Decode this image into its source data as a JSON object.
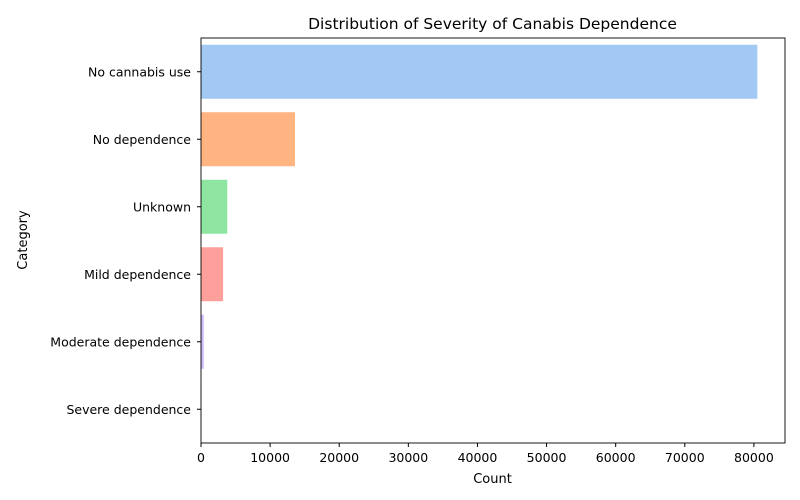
{
  "chart_data": {
    "type": "bar",
    "orientation": "horizontal",
    "title": "Distribution of Severity of Canabis Dependence",
    "xlabel": "Count",
    "ylabel": "Category",
    "categories": [
      "No cannabis use",
      "No dependence",
      "Unknown",
      "Mild dependence",
      "Moderate dependence",
      "Severe dependence"
    ],
    "values": [
      80500,
      13600,
      3800,
      3200,
      400,
      50
    ],
    "colors": [
      "#a1c9f4",
      "#ffb482",
      "#8de5a1",
      "#ff9f9b",
      "#d0bbff",
      "#debb9b"
    ],
    "xlim": [
      0,
      84500
    ],
    "xticks": [
      0,
      10000,
      20000,
      30000,
      40000,
      50000,
      60000,
      70000,
      80000
    ],
    "xtick_labels": [
      "0",
      "10000",
      "20000",
      "30000",
      "40000",
      "50000",
      "60000",
      "70000",
      "80000"
    ],
    "grid": false,
    "legend": false
  }
}
